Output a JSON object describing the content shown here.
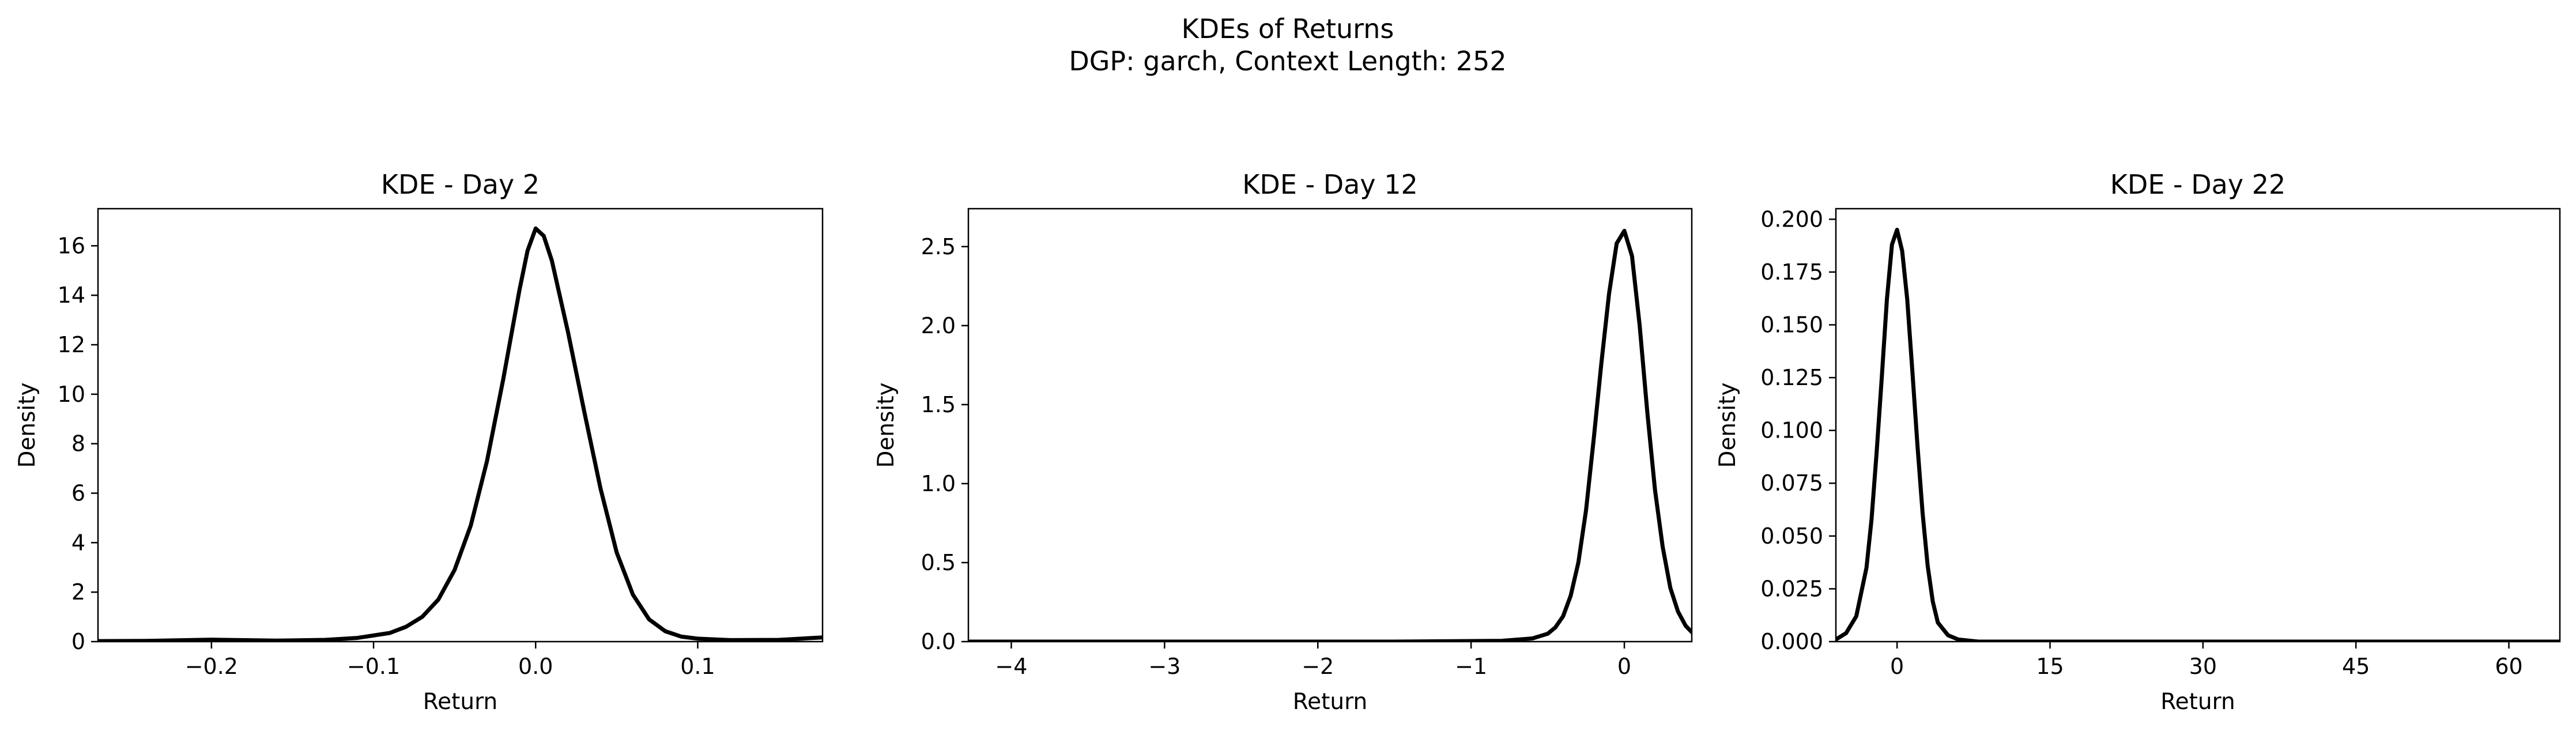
{
  "figure": {
    "title_line1": "KDEs of Returns",
    "title_line2": "DGP: garch, Context Length: 252"
  },
  "chart_data": [
    {
      "type": "line",
      "title": "KDE - Day 2",
      "xlabel": "Return",
      "ylabel": "Density",
      "xlim": [
        -0.27,
        0.177
      ],
      "ylim": [
        0,
        17.5
      ],
      "xticks": [
        -0.2,
        -0.1,
        0.0,
        0.1
      ],
      "xtick_labels": [
        "−0.2",
        "−0.1",
        "0.0",
        "0.1"
      ],
      "yticks": [
        0,
        2,
        4,
        6,
        8,
        10,
        12,
        14,
        16
      ],
      "ytick_labels": [
        "0",
        "2",
        "4",
        "6",
        "8",
        "10",
        "12",
        "14",
        "16"
      ],
      "grid": false,
      "line_color": "#000000",
      "x": [
        -0.27,
        -0.24,
        -0.2,
        -0.16,
        -0.13,
        -0.11,
        -0.09,
        -0.08,
        -0.07,
        -0.06,
        -0.05,
        -0.04,
        -0.03,
        -0.02,
        -0.01,
        -0.005,
        0.0,
        0.005,
        0.01,
        0.02,
        0.03,
        0.04,
        0.05,
        0.06,
        0.07,
        0.08,
        0.09,
        0.1,
        0.12,
        0.15,
        0.177
      ],
      "y": [
        0.02,
        0.03,
        0.08,
        0.04,
        0.07,
        0.15,
        0.35,
        0.6,
        1.0,
        1.7,
        2.9,
        4.7,
        7.3,
        10.6,
        14.2,
        15.8,
        16.7,
        16.4,
        15.4,
        12.5,
        9.3,
        6.2,
        3.6,
        1.9,
        0.9,
        0.42,
        0.2,
        0.12,
        0.06,
        0.07,
        0.17
      ]
    },
    {
      "type": "line",
      "title": "KDE - Day 12",
      "xlabel": "Return",
      "ylabel": "Density",
      "xlim": [
        -4.28,
        0.44
      ],
      "ylim": [
        0,
        2.74
      ],
      "xticks": [
        -4,
        -3,
        -2,
        -1,
        0
      ],
      "xtick_labels": [
        "−4",
        "−3",
        "−2",
        "−1",
        "0"
      ],
      "yticks": [
        0.0,
        0.5,
        1.0,
        1.5,
        2.0,
        2.5
      ],
      "ytick_labels": [
        "0.0",
        "0.5",
        "1.0",
        "1.5",
        "2.0",
        "2.5"
      ],
      "grid": false,
      "line_color": "#000000",
      "x": [
        -4.28,
        -3.0,
        -1.5,
        -0.8,
        -0.6,
        -0.5,
        -0.45,
        -0.4,
        -0.35,
        -0.3,
        -0.25,
        -0.2,
        -0.15,
        -0.1,
        -0.05,
        0.0,
        0.05,
        0.1,
        0.15,
        0.2,
        0.25,
        0.3,
        0.35,
        0.4,
        0.44
      ],
      "y": [
        0.0,
        0.0,
        0.0,
        0.005,
        0.02,
        0.05,
        0.09,
        0.16,
        0.29,
        0.5,
        0.83,
        1.28,
        1.76,
        2.2,
        2.52,
        2.6,
        2.44,
        2.0,
        1.45,
        0.96,
        0.6,
        0.34,
        0.19,
        0.1,
        0.06
      ]
    },
    {
      "type": "line",
      "title": "KDE - Day 22",
      "xlabel": "Return",
      "ylabel": "Density",
      "xlim": [
        -6.0,
        65.0
      ],
      "ylim": [
        0,
        0.205
      ],
      "xticks": [
        0,
        15,
        30,
        45,
        60
      ],
      "xtick_labels": [
        "0",
        "15",
        "30",
        "45",
        "60"
      ],
      "yticks": [
        0.0,
        0.025,
        0.05,
        0.075,
        0.1,
        0.125,
        0.15,
        0.175,
        0.2
      ],
      "ytick_labels": [
        "0.000",
        "0.025",
        "0.050",
        "0.075",
        "0.100",
        "0.125",
        "0.150",
        "0.175",
        "0.200"
      ],
      "grid": false,
      "line_color": "#000000",
      "x": [
        -6.0,
        -5.0,
        -4.0,
        -3.0,
        -2.5,
        -2.0,
        -1.5,
        -1.0,
        -0.5,
        0.0,
        0.5,
        1.0,
        1.5,
        2.0,
        2.5,
        3.0,
        3.5,
        4.0,
        5.0,
        6.0,
        8.0,
        15.0,
        30.0,
        45.0,
        60.0,
        65.0
      ],
      "y": [
        0.001,
        0.004,
        0.012,
        0.035,
        0.058,
        0.09,
        0.125,
        0.162,
        0.188,
        0.195,
        0.185,
        0.162,
        0.128,
        0.093,
        0.061,
        0.036,
        0.019,
        0.009,
        0.003,
        0.001,
        0.0,
        0.0,
        0.0,
        0.0,
        0.0,
        0.0
      ]
    }
  ]
}
